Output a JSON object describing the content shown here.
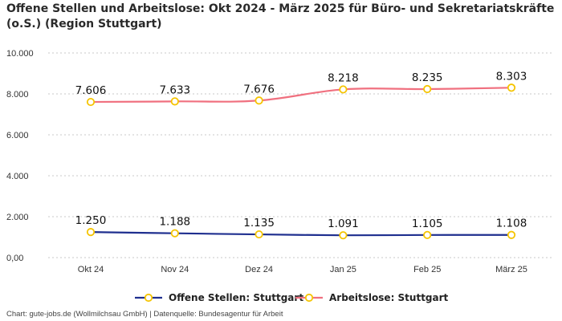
{
  "chart_title": "Offene Stellen und Arbeitslose: Okt 2024 - März 2025 für Büro- und Sekretariatskräfte (o.S.) (Region Stuttgart)",
  "footer": "Chart: gute-jobs.de (Wollmilchsau GmbH) | Datenquelle: Bundesagentur für Arbeit",
  "chart_data": {
    "type": "line",
    "title": "Offene Stellen und Arbeitslose: Okt 2024 - März 2025 für Büro- und Sekretariatskräfte (o.S.) (Region Stuttgart)",
    "categories": [
      "Okt 24",
      "Nov 24",
      "Dez 24",
      "Jan 25",
      "Feb 25",
      "März 25"
    ],
    "ylim": [
      0,
      10000
    ],
    "yticks": [
      0,
      2000,
      4000,
      6000,
      8000,
      10000
    ],
    "ytick_labels": [
      "0,00",
      "2.000",
      "4.000",
      "6.000",
      "8.000",
      "10.000"
    ],
    "grid": true,
    "legend_position": "bottom",
    "series": [
      {
        "name": "Offene Stellen: Stuttgart",
        "color": "#1f2f8f",
        "values": [
          1250,
          1188,
          1135,
          1091,
          1105,
          1108
        ],
        "labels": [
          "1.250",
          "1.188",
          "1.135",
          "1.091",
          "1.105",
          "1.108"
        ]
      },
      {
        "name": "Arbeitslose: Stuttgart",
        "color": "#f0707f",
        "values": [
          7606,
          7633,
          7676,
          8218,
          8235,
          8303
        ],
        "labels": [
          "7.606",
          "7.633",
          "7.676",
          "8.218",
          "8.235",
          "8.303"
        ]
      }
    ],
    "marker_color": "#f5c400"
  }
}
